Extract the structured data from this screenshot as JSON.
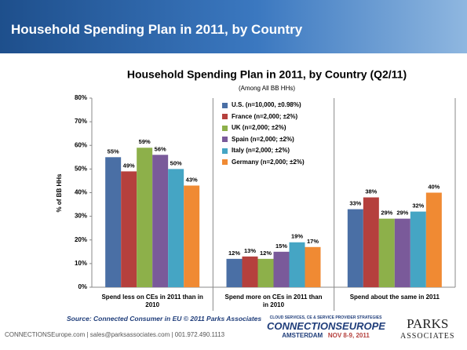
{
  "header": {
    "title": "Household Spending Plan in 2011, by Country"
  },
  "chart_data": {
    "type": "bar",
    "title": "Household Spending Plan in 2011, by Country (Q2/11)",
    "subtitle": "(Among All BB HHs)",
    "y_label": "% of BB HHs",
    "categories": [
      "Spend less on CEs in 2011 than in 2010",
      "Spend more on CEs in 2011 than in 2010",
      "Spend about the same in 2011"
    ],
    "series": [
      {
        "name": "U.S. (n=10,000, ±0.98%)",
        "color": "#4a6fa5",
        "values": [
          55,
          12,
          33
        ],
        "value_labels": [
          "55%",
          "12%",
          "33%"
        ]
      },
      {
        "name": "France (n=2,000; ±2%)",
        "color": "#b5403d",
        "values": [
          49,
          13,
          38
        ],
        "value_labels": [
          "49%",
          "13%",
          "38%"
        ]
      },
      {
        "name": "UK (n=2,000; ±2%)",
        "color": "#8db04a",
        "values": [
          59,
          12,
          29
        ],
        "value_labels": [
          "59%",
          "12%",
          "29%"
        ]
      },
      {
        "name": "Spain (n=2,000; ±2%)",
        "color": "#7a5a9a",
        "values": [
          56,
          15,
          29
        ],
        "value_labels": [
          "56%",
          "15%",
          "29%"
        ]
      },
      {
        "name": "Italy (n=2,000; ±2%)",
        "color": "#45a5c4",
        "values": [
          50,
          19,
          32
        ],
        "value_labels": [
          "50%",
          "19%",
          "32%"
        ]
      },
      {
        "name": "Germany (n=2,000; ±2%)",
        "color": "#f08a33",
        "values": [
          43,
          17,
          40
        ],
        "value_labels": [
          "43%",
          "17%",
          "40%"
        ]
      }
    ],
    "ylim": [
      0,
      80
    ],
    "yticks": [
      {
        "value": 0,
        "label": "0%"
      },
      {
        "value": 10,
        "label": "10%"
      },
      {
        "value": 20,
        "label": "20%"
      },
      {
        "value": 30,
        "label": "30%"
      },
      {
        "value": 40,
        "label": "40%"
      },
      {
        "value": 50,
        "label": "50%"
      },
      {
        "value": 60,
        "label": "60%"
      },
      {
        "value": 70,
        "label": "70%"
      },
      {
        "value": 80,
        "label": "80%"
      }
    ],
    "grid": false,
    "legend": "top-center"
  },
  "source": "Source:  Connected Consumer in EU © 2011 Parks Associates",
  "footer": {
    "contact": "CONNECTIONSEurope.com  |  sales@parksassociates.com  |  001.972.490.1113",
    "event_tagline": "CLOUD SERVICES, CE & SERVICE PROVIDER STRATEGIES",
    "event_name": "CONNECTIONSEUROPE",
    "event_city": "AMSTERDAM",
    "event_date": "NOV 8-9, 2011",
    "company": "PARKS",
    "company_sub": "ASSOCIATES"
  }
}
